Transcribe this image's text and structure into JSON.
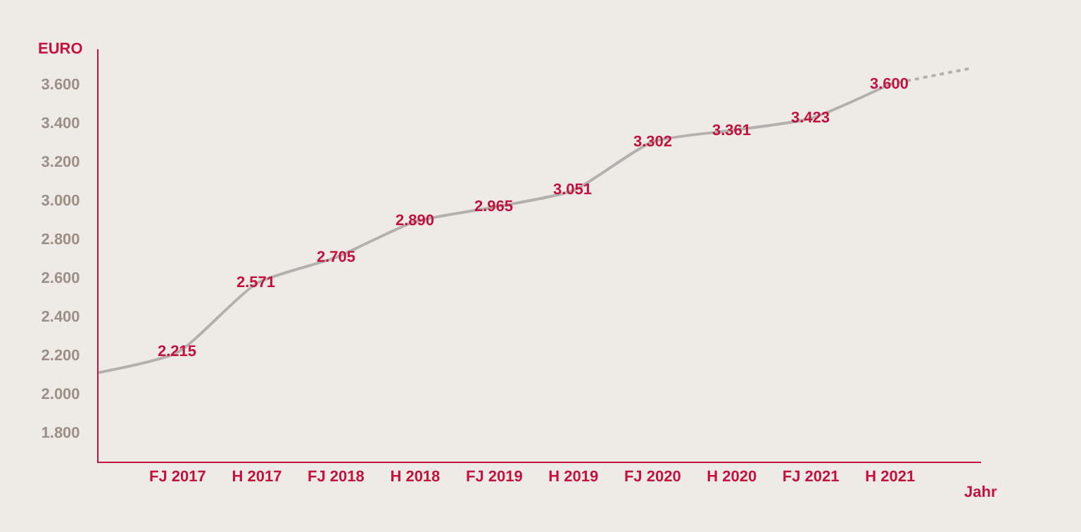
{
  "chart_data": {
    "type": "line",
    "ylabel": "EURO",
    "xlabel": "Jahr",
    "categories": [
      null,
      "FJ 2017",
      "H 2017",
      "FJ 2018",
      "H 2018",
      "FJ 2019",
      "H 2019",
      "FJ 2020",
      "H 2020",
      "FJ 2021",
      "H 2021",
      null
    ],
    "series": [
      {
        "color": "#b3b0ad",
        "line_style": "solid",
        "values": [
          2110,
          2215,
          2571,
          2705,
          2890,
          2965,
          3051,
          3302,
          3361,
          3423,
          3600,
          null
        ],
        "value_labels": [
          null,
          "2.215",
          "2.571",
          "2.705",
          "2.890",
          "2.965",
          "3.051",
          "3.302",
          "3.361",
          "3.423",
          "3.600",
          null
        ]
      },
      {
        "color": "#b3b0ad",
        "line_style": "dotted",
        "values": [
          null,
          null,
          null,
          null,
          null,
          null,
          null,
          null,
          null,
          null,
          3600,
          3680
        ]
      }
    ],
    "ylim": [
      1650,
      3780
    ],
    "yticks": [
      {
        "value": 1800,
        "label": "1.800"
      },
      {
        "value": 2000,
        "label": "2.000"
      },
      {
        "value": 2200,
        "label": "2.200"
      },
      {
        "value": 2400,
        "label": "2.400"
      },
      {
        "value": 2600,
        "label": "2.600"
      },
      {
        "value": 2800,
        "label": "2.800"
      },
      {
        "value": 3000,
        "label": "3.000"
      },
      {
        "value": 3200,
        "label": "3.200"
      },
      {
        "value": 3400,
        "label": "3.400"
      },
      {
        "value": 3600,
        "label": "3.600"
      }
    ],
    "grid": false
  }
}
